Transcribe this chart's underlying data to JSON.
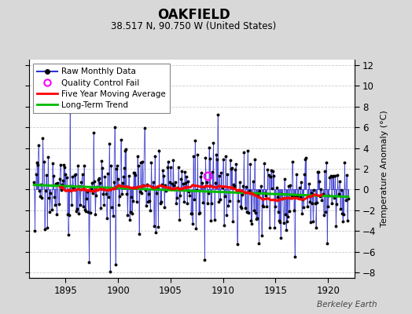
{
  "title": "OAKFIELD",
  "subtitle": "38.517 N, 90.750 W (United States)",
  "ylabel": "Temperature Anomaly (°C)",
  "watermark": "Berkeley Earth",
  "xlim": [
    1891.5,
    1922.5
  ],
  "ylim": [
    -8.5,
    12.5
  ],
  "yticks": [
    -8,
    -6,
    -4,
    -2,
    0,
    2,
    4,
    6,
    8,
    10,
    12
  ],
  "xticks": [
    1895,
    1900,
    1905,
    1910,
    1915,
    1920
  ],
  "bg_color": "#d8d8d8",
  "plot_bg_color": "#ffffff",
  "raw_color": "#3333cc",
  "ma_color": "#ff0000",
  "trend_color": "#00bb00",
  "qc_color": "#ff00ff",
  "raw_seed": 17,
  "qc_point_x": 1908.5,
  "qc_point_y": 1.3,
  "start_year": 1892.0,
  "end_year": 1921.92
}
